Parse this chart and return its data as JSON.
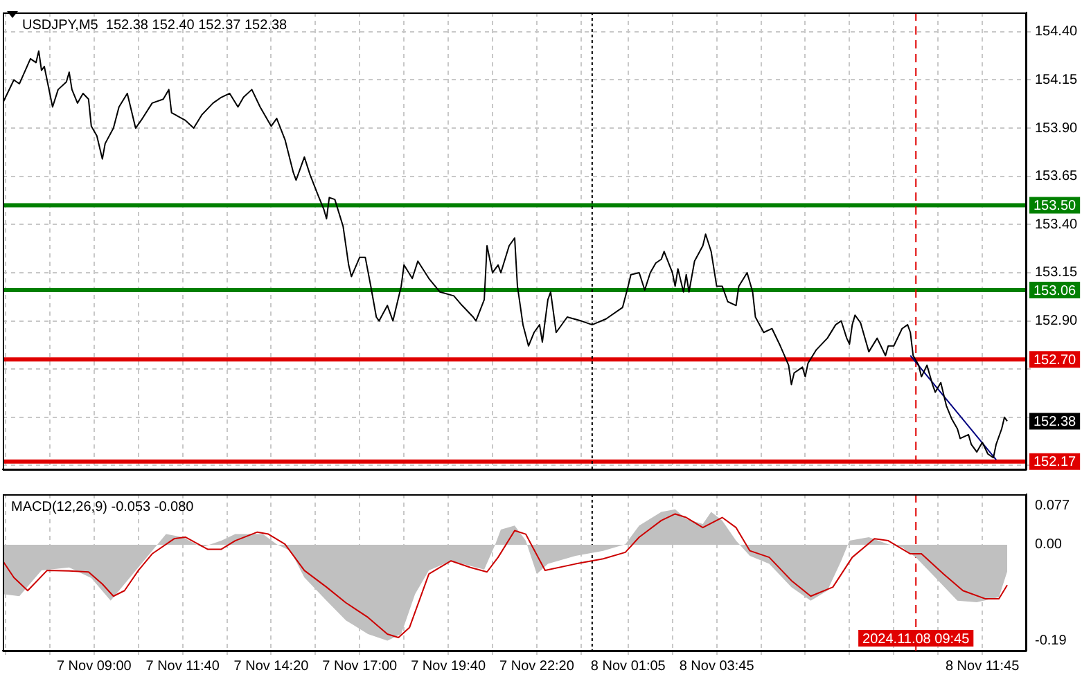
{
  "chart_data": [
    {
      "type": "line",
      "title": "USDJPY,M5  152.38 152.40 152.37 152.38",
      "marker": "none",
      "grid": true,
      "tick_labels": "y",
      "xlim": [
        "2024-11-07T06:15",
        "2024-11-08T13:05"
      ],
      "ylim": [
        152.13,
        154.5
      ],
      "xticks": [
        {
          "value": "2024-11-07T06:20",
          "label": null
        },
        {
          "value": "2024-11-07T07:40",
          "label": null
        },
        {
          "value": "2024-11-07T09:00",
          "label": null
        },
        {
          "value": "2024-11-07T10:20",
          "label": null
        },
        {
          "value": "2024-11-07T11:40",
          "label": null
        },
        {
          "value": "2024-11-07T13:00",
          "label": null
        },
        {
          "value": "2024-11-07T14:20",
          "label": null
        },
        {
          "value": "2024-11-07T15:40",
          "label": null
        },
        {
          "value": "2024-11-07T17:00",
          "label": null
        },
        {
          "value": "2024-11-07T18:20",
          "label": null
        },
        {
          "value": "2024-11-07T19:40",
          "label": null
        },
        {
          "value": "2024-11-07T21:00",
          "label": null
        },
        {
          "value": "2024-11-07T22:20",
          "label": null
        },
        {
          "value": "2024-11-07T23:40",
          "label": null
        },
        {
          "value": "2024-11-08T01:05",
          "label": null
        },
        {
          "value": "2024-11-08T02:25",
          "label": null
        },
        {
          "value": "2024-11-08T03:45",
          "label": null
        },
        {
          "value": "2024-11-08T05:05",
          "label": null
        },
        {
          "value": "2024-11-08T06:25",
          "label": null
        },
        {
          "value": "2024-11-08T07:45",
          "label": null
        },
        {
          "value": "2024-11-08T09:05",
          "label": null
        },
        {
          "value": "2024-11-08T10:25",
          "label": null
        },
        {
          "value": "2024-11-08T11:45",
          "label": null
        }
      ],
      "yticks": [
        {
          "value": 152.15,
          "label": null
        },
        {
          "value": 152.4,
          "label": null
        },
        {
          "value": 152.65,
          "label": null
        },
        {
          "value": 152.9,
          "label": "152.90"
        },
        {
          "value": 153.15,
          "label": "153.15"
        },
        {
          "value": 153.4,
          "label": "153.40"
        },
        {
          "value": 153.65,
          "label": "153.65"
        },
        {
          "value": 153.9,
          "label": "153.90"
        },
        {
          "value": 154.15,
          "label": "154.15"
        },
        {
          "value": 154.4,
          "label": "154.40"
        }
      ],
      "x": [
        "2024-11-07T06:15",
        "2024-11-07T06:35",
        "2024-11-07T06:45",
        "2024-11-07T07:05",
        "2024-11-07T07:15",
        "2024-11-07T07:20",
        "2024-11-07T07:25",
        "2024-11-07T07:30",
        "2024-11-07T07:45",
        "2024-11-07T07:55",
        "2024-11-07T08:10",
        "2024-11-07T08:15",
        "2024-11-07T08:20",
        "2024-11-07T08:30",
        "2024-11-07T08:40",
        "2024-11-07T08:50",
        "2024-11-07T08:55",
        "2024-11-07T09:05",
        "2024-11-07T09:15",
        "2024-11-07T09:20",
        "2024-11-07T09:35",
        "2024-11-07T09:45",
        "2024-11-07T10:00",
        "2024-11-07T10:15",
        "2024-11-07T10:25",
        "2024-11-07T10:45",
        "2024-11-07T11:05",
        "2024-11-07T11:15",
        "2024-11-07T11:20",
        "2024-11-07T11:45",
        "2024-11-07T12:00",
        "2024-11-07T12:15",
        "2024-11-07T12:35",
        "2024-11-07T12:50",
        "2024-11-07T13:05",
        "2024-11-07T13:20",
        "2024-11-07T13:30",
        "2024-11-07T13:45",
        "2024-11-07T14:00",
        "2024-11-07T14:20",
        "2024-11-07T14:30",
        "2024-11-07T14:45",
        "2024-11-07T15:00",
        "2024-11-07T15:05",
        "2024-11-07T15:20",
        "2024-11-07T15:30",
        "2024-11-07T15:45",
        "2024-11-07T15:55",
        "2024-11-07T16:00",
        "2024-11-07T16:05",
        "2024-11-07T16:15",
        "2024-11-07T16:30",
        "2024-11-07T16:35",
        "2024-11-07T16:40",
        "2024-11-07T16:45",
        "2024-11-07T17:00",
        "2024-11-07T17:10",
        "2024-11-07T17:20",
        "2024-11-07T17:30",
        "2024-11-07T17:35",
        "2024-11-07T17:50",
        "2024-11-07T18:00",
        "2024-11-07T18:15",
        "2024-11-07T18:20",
        "2024-11-07T18:35",
        "2024-11-07T18:45",
        "2024-11-07T19:05",
        "2024-11-07T19:25",
        "2024-11-07T19:50",
        "2024-11-07T20:05",
        "2024-11-07T20:25",
        "2024-11-07T20:30",
        "2024-11-07T20:45",
        "2024-11-07T20:50",
        "2024-11-07T21:00",
        "2024-11-07T21:10",
        "2024-11-07T21:15",
        "2024-11-07T21:30",
        "2024-11-07T21:40",
        "2024-11-07T21:45",
        "2024-11-07T21:55",
        "2024-11-07T22:05",
        "2024-11-07T22:15",
        "2024-11-07T22:25",
        "2024-11-07T22:30",
        "2024-11-07T22:40",
        "2024-11-07T22:45",
        "2024-11-07T22:55",
        "2024-11-07T23:15",
        "2024-11-07T23:40",
        "2024-11-08T00:00",
        "2024-11-08T00:25",
        "2024-11-08T00:55",
        "2024-11-08T01:05",
        "2024-11-08T01:10",
        "2024-11-08T01:25",
        "2024-11-08T01:35",
        "2024-11-08T01:45",
        "2024-11-08T01:55",
        "2024-11-08T02:05",
        "2024-11-08T02:10",
        "2024-11-08T02:25",
        "2024-11-08T02:30",
        "2024-11-08T02:35",
        "2024-11-08T02:45",
        "2024-11-08T02:50",
        "2024-11-08T02:55",
        "2024-11-08T03:05",
        "2024-11-08T03:20",
        "2024-11-08T03:25",
        "2024-11-08T03:35",
        "2024-11-08T03:45",
        "2024-11-08T03:55",
        "2024-11-08T04:05",
        "2024-11-08T04:20",
        "2024-11-08T04:25",
        "2024-11-08T04:40",
        "2024-11-08T04:50",
        "2024-11-08T04:55",
        "2024-11-08T05:10",
        "2024-11-08T05:25",
        "2024-11-08T05:40",
        "2024-11-08T05:55",
        "2024-11-08T06:00",
        "2024-11-08T06:05",
        "2024-11-08T06:20",
        "2024-11-08T06:25",
        "2024-11-08T06:30",
        "2024-11-08T06:45",
        "2024-11-08T07:05",
        "2024-11-08T07:20",
        "2024-11-08T07:30",
        "2024-11-08T07:40",
        "2024-11-08T07:45",
        "2024-11-08T07:50",
        "2024-11-08T07:55",
        "2024-11-08T08:05",
        "2024-11-08T08:15",
        "2024-11-08T08:20",
        "2024-11-08T08:35",
        "2024-11-08T08:50",
        "2024-11-08T08:55",
        "2024-11-08T09:05",
        "2024-11-08T09:20",
        "2024-11-08T09:30",
        "2024-11-08T09:35",
        "2024-11-08T09:40",
        "2024-11-08T09:50",
        "2024-11-08T09:55",
        "2024-11-08T10:05",
        "2024-11-08T10:15",
        "2024-11-08T10:20",
        "2024-11-08T10:30",
        "2024-11-08T10:40",
        "2024-11-08T10:50",
        "2024-11-08T11:00",
        "2024-11-08T11:05",
        "2024-11-08T11:20",
        "2024-11-08T11:25",
        "2024-11-08T11:35",
        "2024-11-08T11:45",
        "2024-11-08T11:55",
        "2024-11-08T12:05",
        "2024-11-08T12:10",
        "2024-11-08T12:20",
        "2024-11-08T12:25",
        "2024-11-08T12:30"
      ],
      "series": [
        {
          "color": "#000000",
          "values": [
            154.03,
            154.15,
            154.13,
            154.26,
            154.24,
            154.3,
            154.2,
            154.22,
            154.01,
            154.1,
            154.14,
            154.19,
            154.1,
            154.03,
            154.08,
            154.05,
            153.91,
            153.86,
            153.74,
            153.82,
            153.9,
            154.01,
            154.08,
            153.9,
            153.94,
            154.03,
            154.05,
            154.1,
            153.98,
            153.94,
            153.9,
            153.97,
            154.03,
            154.06,
            154.08,
            154.01,
            154.06,
            154.1,
            154.01,
            153.91,
            153.95,
            153.84,
            153.67,
            153.63,
            153.75,
            153.66,
            153.55,
            153.48,
            153.43,
            153.54,
            153.53,
            153.39,
            153.29,
            153.19,
            153.13,
            153.23,
            153.23,
            153.08,
            152.92,
            152.9,
            152.98,
            152.9,
            153.08,
            153.19,
            153.12,
            153.21,
            153.12,
            153.05,
            153.03,
            152.98,
            152.92,
            152.9,
            153.01,
            153.29,
            153.15,
            153.19,
            153.15,
            153.29,
            153.33,
            153.08,
            152.88,
            152.77,
            152.84,
            152.88,
            152.79,
            153.01,
            153.05,
            152.84,
            152.92,
            152.9,
            152.88,
            152.91,
            152.97,
            153.08,
            153.14,
            153.15,
            153.06,
            153.15,
            153.2,
            153.22,
            153.26,
            153.15,
            153.08,
            153.17,
            153.05,
            153.14,
            153.05,
            153.21,
            153.29,
            153.35,
            153.26,
            153.08,
            153.08,
            153.0,
            152.98,
            153.08,
            153.15,
            153.05,
            152.92,
            152.84,
            152.86,
            152.77,
            152.67,
            152.57,
            152.63,
            152.66,
            152.61,
            152.68,
            152.75,
            152.81,
            152.88,
            152.9,
            152.81,
            152.78,
            152.88,
            152.93,
            152.89,
            152.79,
            152.74,
            152.81,
            152.72,
            152.77,
            152.77,
            152.86,
            152.88,
            152.84,
            152.72,
            152.67,
            152.61,
            152.67,
            152.57,
            152.53,
            152.58,
            152.46,
            152.39,
            152.34,
            152.29,
            152.31,
            152.26,
            152.22,
            152.27,
            152.21,
            152.19,
            152.26,
            152.34,
            152.4,
            152.38
          ]
        },
        {
          "color": "#000080",
          "x": [
            "2024-11-08T09:35",
            "2024-11-08T12:10"
          ],
          "values": [
            152.72,
            152.18
          ]
        }
      ],
      "ref_lines": [
        {
          "axis": "y",
          "value": 153.5,
          "label": "153.50",
          "color": "#008000"
        },
        {
          "axis": "y",
          "value": 153.06,
          "label": "153.06",
          "color": "#008000"
        },
        {
          "axis": "y",
          "value": 152.7,
          "label": "152.70",
          "color": "#e00000"
        },
        {
          "axis": "y",
          "value": 152.17,
          "label": "152.17",
          "color": "#e00000"
        },
        {
          "axis": "x",
          "value": "2024-11-08T00:00",
          "color": "#000000",
          "line_style": "dotted"
        },
        {
          "axis": "x",
          "value": "2024-11-08T09:45",
          "color": "#e00000",
          "line_style": "dashed"
        }
      ],
      "annotations": [
        {
          "text": "152.38",
          "y": 152.38
        }
      ]
    },
    {
      "type": "line",
      "title": "MACD(12,26,9) -0.053 -0.080",
      "marker": "none",
      "grid": "x",
      "xlim": [
        "2024-11-07T06:15",
        "2024-11-08T13:05"
      ],
      "ylim": [
        -0.21,
        0.1
      ],
      "xticks": [
        {
          "value": "2024-11-07T06:20",
          "label": null
        },
        {
          "value": "2024-11-07T07:40",
          "label": null
        },
        {
          "value": "2024-11-07T09:00",
          "label": "7 Nov 09:00"
        },
        {
          "value": "2024-11-07T10:20",
          "label": null
        },
        {
          "value": "2024-11-07T11:40",
          "label": "7 Nov 11:40"
        },
        {
          "value": "2024-11-07T13:00",
          "label": null
        },
        {
          "value": "2024-11-07T14:20",
          "label": "7 Nov 14:20"
        },
        {
          "value": "2024-11-07T15:40",
          "label": null
        },
        {
          "value": "2024-11-07T17:00",
          "label": "7 Nov 17:00"
        },
        {
          "value": "2024-11-07T18:20",
          "label": null
        },
        {
          "value": "2024-11-07T19:40",
          "label": "7 Nov 19:40"
        },
        {
          "value": "2024-11-07T21:00",
          "label": null
        },
        {
          "value": "2024-11-07T22:20",
          "label": "7 Nov 22:20"
        },
        {
          "value": "2024-11-07T23:40",
          "label": null
        },
        {
          "value": "2024-11-08T01:05",
          "label": "8 Nov 01:05"
        },
        {
          "value": "2024-11-08T02:25",
          "label": null
        },
        {
          "value": "2024-11-08T03:45",
          "label": "8 Nov 03:45"
        },
        {
          "value": "2024-11-08T05:05",
          "label": null
        },
        {
          "value": "2024-11-08T06:25",
          "label": null
        },
        {
          "value": "2024-11-08T07:45",
          "label": null
        },
        {
          "value": "2024-11-08T09:05",
          "label": null
        },
        {
          "value": "2024-11-08T10:25",
          "label": null
        },
        {
          "value": "2024-11-08T11:45",
          "label": "8 Nov 11:45"
        }
      ],
      "yticks": [
        {
          "value": -0.19,
          "label": "-0.19"
        },
        {
          "value": 0,
          "label": "0.00"
        },
        {
          "value": 0.077,
          "label": "0.077"
        }
      ],
      "series": [
        {
          "type": "area",
          "color": "#c0c0c0",
          "x": [
            "2024-11-07T06:15",
            "2024-11-07T06:45",
            "2024-11-07T07:25",
            "2024-11-07T08:15",
            "2024-11-07T08:55",
            "2024-11-07T09:30",
            "2024-11-07T10:10",
            "2024-11-07T10:45",
            "2024-11-07T11:10",
            "2024-11-07T11:40",
            "2024-11-07T12:15",
            "2024-11-07T12:50",
            "2024-11-07T13:15",
            "2024-11-07T14:05",
            "2024-11-07T14:30",
            "2024-11-07T14:55",
            "2024-11-07T15:20",
            "2024-11-07T16:00",
            "2024-11-07T16:35",
            "2024-11-07T17:15",
            "2024-11-07T17:50",
            "2024-11-07T18:15",
            "2024-11-07T18:40",
            "2024-11-07T19:05",
            "2024-11-07T19:45",
            "2024-11-07T20:45",
            "2024-11-07T21:05",
            "2024-11-07T21:15",
            "2024-11-07T21:40",
            "2024-11-07T22:00",
            "2024-11-07T22:20",
            "2024-11-07T22:40",
            "2024-11-07T23:30",
            "2024-11-08T00:20",
            "2024-11-08T01:00",
            "2024-11-08T01:25",
            "2024-11-08T02:05",
            "2024-11-08T02:30",
            "2024-11-08T02:50",
            "2024-11-08T03:20",
            "2024-11-08T03:35",
            "2024-11-08T03:55",
            "2024-11-08T04:20",
            "2024-11-08T04:45",
            "2024-11-08T05:20",
            "2024-11-08T06:00",
            "2024-11-08T06:35",
            "2024-11-08T07:05",
            "2024-11-08T07:30",
            "2024-11-08T07:45",
            "2024-11-08T08:20",
            "2024-11-08T08:55",
            "2024-11-08T09:20",
            "2024-11-08T09:45",
            "2024-11-08T10:20",
            "2024-11-08T11:00",
            "2024-11-08T11:35",
            "2024-11-08T12:15",
            "2024-11-08T12:30"
          ],
          "values": [
            -0.098,
            -0.102,
            -0.051,
            -0.045,
            -0.066,
            -0.111,
            -0.058,
            -0.012,
            0.021,
            0.015,
            -0.005,
            0.008,
            0.021,
            0.021,
            0.001,
            -0.012,
            -0.065,
            -0.111,
            -0.15,
            -0.177,
            -0.19,
            -0.177,
            -0.098,
            -0.051,
            -0.032,
            -0.049,
            0.001,
            0.03,
            0.038,
            0.008,
            -0.058,
            -0.038,
            -0.022,
            -0.012,
            0.001,
            0.038,
            0.065,
            0.07,
            0.051,
            0.041,
            0.065,
            0.048,
            0.008,
            -0.022,
            -0.038,
            -0.084,
            -0.111,
            -0.091,
            -0.032,
            0.008,
            0.015,
            0.001,
            -0.005,
            -0.025,
            -0.065,
            -0.111,
            -0.114,
            -0.104,
            -0.053
          ]
        },
        {
          "color": "#cc0000",
          "x": [
            "2024-11-07T06:15",
            "2024-11-07T06:35",
            "2024-11-07T07:00",
            "2024-11-07T07:35",
            "2024-11-07T08:15",
            "2024-11-07T08:50",
            "2024-11-07T09:15",
            "2024-11-07T09:35",
            "2024-11-07T09:55",
            "2024-11-07T10:20",
            "2024-11-07T10:45",
            "2024-11-07T11:25",
            "2024-11-07T11:45",
            "2024-11-07T12:25",
            "2024-11-07T12:50",
            "2024-11-07T13:15",
            "2024-11-07T13:55",
            "2024-11-07T14:15",
            "2024-11-07T14:45",
            "2024-11-07T15:20",
            "2024-11-07T16:00",
            "2024-11-07T16:35",
            "2024-11-07T17:15",
            "2024-11-07T17:50",
            "2024-11-07T18:10",
            "2024-11-07T18:30",
            "2024-11-07T19:05",
            "2024-11-07T19:45",
            "2024-11-07T20:20",
            "2024-11-07T20:50",
            "2024-11-07T21:10",
            "2024-11-07T21:40",
            "2024-11-07T22:00",
            "2024-11-07T22:35",
            "2024-11-07T23:30",
            "2024-11-08T00:20",
            "2024-11-08T01:00",
            "2024-11-08T01:25",
            "2024-11-08T02:05",
            "2024-11-08T02:30",
            "2024-11-08T02:50",
            "2024-11-08T03:20",
            "2024-11-08T03:55",
            "2024-11-08T04:20",
            "2024-11-08T04:45",
            "2024-11-08T05:20",
            "2024-11-08T06:00",
            "2024-11-08T06:35",
            "2024-11-08T07:15",
            "2024-11-08T07:50",
            "2024-11-08T08:30",
            "2024-11-08T08:55",
            "2024-11-08T09:35",
            "2024-11-08T09:55",
            "2024-11-08T10:35",
            "2024-11-08T11:10",
            "2024-11-08T11:50",
            "2024-11-08T12:15",
            "2024-11-08T12:30"
          ],
          "values": [
            -0.032,
            -0.065,
            -0.091,
            -0.051,
            -0.052,
            -0.054,
            -0.078,
            -0.102,
            -0.091,
            -0.051,
            -0.018,
            0.012,
            0.015,
            -0.009,
            -0.009,
            0.008,
            0.025,
            0.021,
            0.001,
            -0.051,
            -0.084,
            -0.115,
            -0.144,
            -0.177,
            -0.184,
            -0.164,
            -0.058,
            -0.032,
            -0.045,
            -0.054,
            -0.025,
            0.028,
            0.021,
            -0.051,
            -0.038,
            -0.028,
            -0.015,
            0.015,
            0.048,
            0.061,
            0.054,
            0.034,
            0.054,
            0.034,
            -0.012,
            -0.025,
            -0.071,
            -0.102,
            -0.084,
            -0.025,
            0.012,
            0.008,
            -0.018,
            -0.018,
            -0.058,
            -0.091,
            -0.107,
            -0.107,
            -0.08
          ]
        }
      ],
      "ref_lines": [
        {
          "axis": "x",
          "value": "2024-11-08T00:00",
          "color": "#000000",
          "line_style": "dotted"
        },
        {
          "axis": "x",
          "value": "2024-11-08T09:45",
          "label": "2024.11.08 09:45",
          "color": "#e00000",
          "line_style": "dashed"
        }
      ]
    }
  ]
}
